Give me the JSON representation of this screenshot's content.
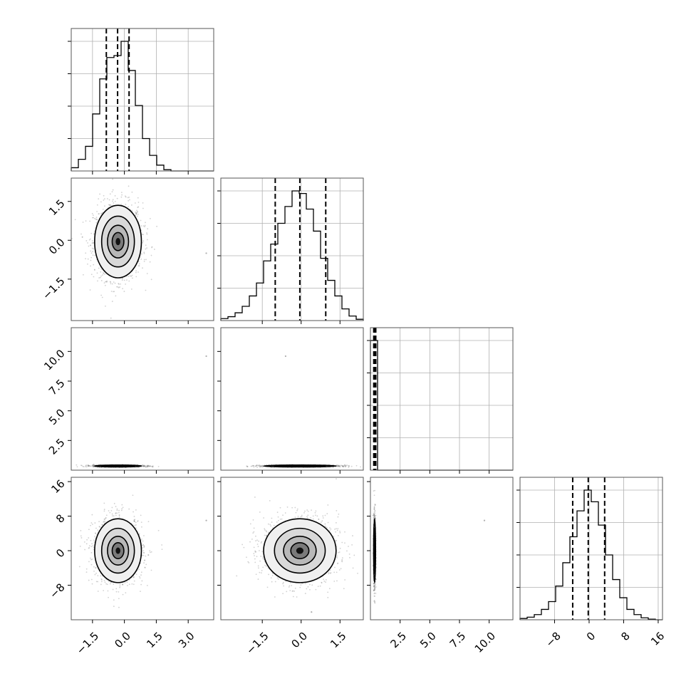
{
  "chart_data": {
    "type": "corner",
    "title": "",
    "n_params": 4,
    "param_labels": [
      "",
      "",
      "",
      ""
    ],
    "grid": true,
    "colors": {
      "line": "#000000",
      "grid": "#b0b0b0",
      "frame": "#555555",
      "points": "#7a7a7a"
    },
    "axes": [
      {
        "range": [
          -2.5,
          4.2
        ],
        "ticks": [
          -1.5,
          0.0,
          1.5,
          3.0
        ],
        "tick_labels": [
          "−1.5",
          "0.0",
          "1.5",
          "3.0"
        ]
      },
      {
        "range": [
          -3.1,
          2.4
        ],
        "ticks": [
          -1.5,
          0.0,
          1.5
        ],
        "tick_labels": [
          "−1.5",
          "0.0",
          "1.5"
        ]
      },
      {
        "range": [
          0.0,
          12.0
        ],
        "ticks": [
          2.5,
          5.0,
          7.5,
          10.0
        ],
        "tick_labels": [
          "2.5",
          "5.0",
          "7.5",
          "10.0"
        ]
      },
      {
        "range": [
          -16.0,
          17.0
        ],
        "ticks": [
          -8,
          0,
          8,
          16
        ],
        "tick_labels": [
          "−8",
          "0",
          "8",
          "16"
        ]
      }
    ],
    "marginals": [
      {
        "bin_edges": [
          -2.5,
          -2.165,
          -1.83,
          -1.495,
          -1.16,
          -0.825,
          -0.49,
          -0.155,
          0.18,
          0.515,
          0.85,
          1.185,
          1.52,
          1.855,
          2.19,
          2.525,
          2.86,
          3.195,
          3.53,
          3.865,
          4.2
        ],
        "counts": [
          5,
          18,
          38,
          88,
          142,
          175,
          178,
          200,
          155,
          101,
          50,
          24,
          9,
          2,
          0,
          0,
          0,
          0,
          0,
          0
        ],
        "quantiles": [
          -0.85,
          -0.32,
          0.22
        ]
      },
      {
        "bin_edges": [
          -3.1,
          -2.825,
          -2.55,
          -2.275,
          -2.0,
          -1.725,
          -1.45,
          -1.175,
          -0.9,
          -0.625,
          -0.35,
          -0.075,
          0.2,
          0.475,
          0.75,
          1.025,
          1.3,
          1.575,
          1.85,
          2.125,
          2.4
        ],
        "counts": [
          3,
          6,
          12,
          22,
          38,
          58,
          92,
          118,
          150,
          176,
          200,
          196,
          172,
          138,
          96,
          62,
          38,
          18,
          7,
          2
        ],
        "quantiles": [
          -1.0,
          -0.05,
          0.95
        ]
      },
      {
        "bin_edges": [
          0.0,
          0.6,
          1.2,
          1.8,
          2.4,
          3.0,
          3.6,
          4.2,
          4.8,
          5.4,
          6.0,
          6.6,
          7.2,
          7.8,
          8.4,
          9.0,
          9.6,
          10.2,
          10.8,
          11.4,
          12.0
        ],
        "counts": [
          200,
          0,
          0,
          0,
          0,
          0,
          0,
          0,
          0,
          0,
          0,
          0,
          0,
          0,
          0,
          0,
          0,
          0,
          0,
          0
        ],
        "quantiles": [
          0.28,
          0.36,
          0.45
        ]
      },
      {
        "bin_edges": [
          -16.0,
          -14.35,
          -12.7,
          -11.05,
          -9.4,
          -7.75,
          -6.1,
          -4.45,
          -2.8,
          -1.15,
          0.5,
          2.15,
          3.8,
          5.45,
          7.1,
          8.75,
          10.4,
          12.05,
          13.7,
          15.35,
          17.0
        ],
        "counts": [
          2,
          4,
          8,
          16,
          28,
          52,
          88,
          128,
          168,
          200,
          182,
          146,
          100,
          62,
          34,
          16,
          8,
          3,
          1,
          0
        ],
        "quantiles": [
          -3.8,
          -0.2,
          3.6
        ]
      }
    ],
    "joint": [
      {
        "row": 1,
        "col": 0,
        "center": [
          -0.3,
          -0.05
        ],
        "sd": [
          0.55,
          0.7
        ],
        "outlier": [
          3.85,
          -0.5
        ]
      },
      {
        "row": 2,
        "col": 0,
        "center": [
          -0.3,
          0.35
        ],
        "sd": [
          0.55,
          0.04
        ],
        "outlier": [
          3.85,
          9.6
        ]
      },
      {
        "row": 2,
        "col": 1,
        "center": [
          -0.05,
          0.35
        ],
        "sd": [
          0.7,
          0.04
        ],
        "outlier": [
          -0.6,
          9.6
        ]
      },
      {
        "row": 3,
        "col": 0,
        "center": [
          -0.3,
          0.0
        ],
        "sd": [
          0.55,
          3.7
        ],
        "outlier": [
          3.85,
          7.0
        ]
      },
      {
        "row": 3,
        "col": 1,
        "center": [
          -0.05,
          0.0
        ],
        "sd": [
          0.7,
          3.7
        ],
        "outlier": [
          0.4,
          -14.2
        ]
      },
      {
        "row": 3,
        "col": 2,
        "center": [
          0.35,
          0.0
        ],
        "sd": [
          0.04,
          3.7
        ],
        "outlier": [
          9.6,
          7.0
        ]
      }
    ]
  }
}
